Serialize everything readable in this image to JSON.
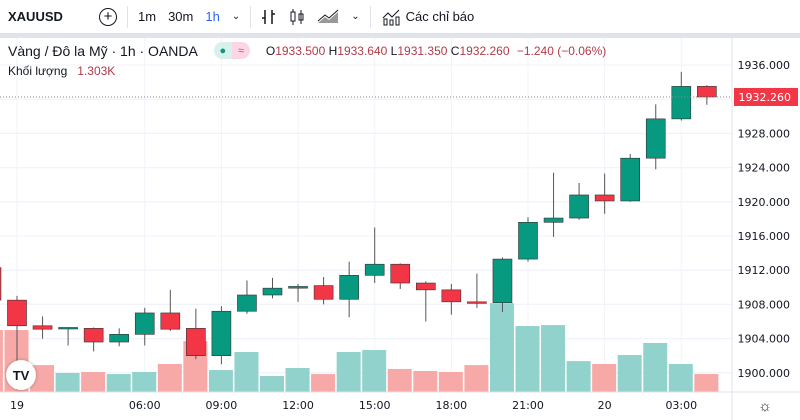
{
  "toolbar": {
    "symbol": "XAUUSD",
    "add_icon": "plus-circle-icon",
    "intervals": [
      "1m",
      "30m",
      "1h"
    ],
    "active_interval": "1h",
    "indicators_label": "Các chỉ báo"
  },
  "legend": {
    "title": "Vàng / Đô la Mỹ · 1h · OANDA",
    "o_label": "O",
    "o": "1933.500",
    "h_label": "H",
    "h": "1933.640",
    "l_label": "L",
    "l": "1931.350",
    "c_label": "C",
    "c": "1932.260",
    "change": "−1.240 (−0.06%)",
    "volume_label": "Khối lượng",
    "volume": "1.303K"
  },
  "colors": {
    "up": "#089981",
    "down": "#f23645",
    "up_vol": "#92d2cc",
    "down_vol": "#f7a9a7"
  },
  "chart_data": {
    "type": "candlestick",
    "price_ticks": [
      "1936.000",
      "1928.000",
      "1924.000",
      "1920.000",
      "1916.000",
      "1912.000",
      "1908.000",
      "1904.000",
      "1900.000"
    ],
    "ylim": [
      1896,
      1940
    ],
    "last_price": "1932.260",
    "time_labels": [
      {
        "i": 1,
        "t": "19"
      },
      {
        "i": 6,
        "t": "06:00"
      },
      {
        "i": 9,
        "t": "09:00"
      },
      {
        "i": 12,
        "t": "12:00"
      },
      {
        "i": 15,
        "t": "15:00"
      },
      {
        "i": 18,
        "t": "18:00"
      },
      {
        "i": 21,
        "t": "21:00"
      },
      {
        "i": 24,
        "t": "20"
      },
      {
        "i": 27,
        "t": "03:00"
      }
    ],
    "candles": [
      [
        1912.3,
        1913,
        1908,
        1908.5,
        4.49
      ],
      [
        1908.5,
        1909,
        1898,
        1905.5,
        4.49
      ],
      [
        1905.5,
        1906.6,
        1904,
        1905.1,
        1.95
      ],
      [
        1905.2,
        1905.3,
        1903.2,
        1905.3,
        1.38
      ],
      [
        1905.2,
        1905.3,
        1902.5,
        1903.6,
        1.45
      ],
      [
        1903.6,
        1905.2,
        1903.1,
        1904.5,
        1.3
      ],
      [
        1904.5,
        1907.6,
        1903.2,
        1907,
        1.45
      ],
      [
        1907,
        1909.7,
        1904.9,
        1905.1,
        2.03
      ],
      [
        1905.2,
        1907.5,
        1901.6,
        1902,
        3.69
      ],
      [
        1902,
        1907.8,
        1901,
        1907.2,
        1.59
      ],
      [
        1907.2,
        1910.8,
        1906.9,
        1909.1,
        2.9
      ],
      [
        1909.1,
        1911.1,
        1908.7,
        1909.9,
        1.16
      ],
      [
        1909.9,
        1910.4,
        1908.3,
        1910.1,
        1.74
      ],
      [
        1910.2,
        1911.2,
        1908,
        1908.6,
        1.3
      ],
      [
        1908.6,
        1913,
        1906.5,
        1911.4,
        2.9
      ],
      [
        1911.4,
        1917,
        1910.5,
        1912.7,
        3.04
      ],
      [
        1912.7,
        1912.8,
        1909.8,
        1910.5,
        1.67
      ],
      [
        1910.5,
        1910.7,
        1906,
        1909.7,
        1.52
      ],
      [
        1909.7,
        1910.4,
        1906.8,
        1908.3,
        1.45
      ],
      [
        1908.3,
        1911.6,
        1907.6,
        1908.2,
        1.95
      ],
      [
        1908.2,
        1913.5,
        1907.1,
        1913.3,
        6.44
      ],
      [
        1913.3,
        1918.2,
        1913,
        1917.6,
        4.78
      ],
      [
        1917.6,
        1923.4,
        1915.9,
        1918.1,
        4.85
      ],
      [
        1918.1,
        1922.2,
        1917.9,
        1920.8,
        2.24
      ],
      [
        1920.8,
        1923.3,
        1918.6,
        1920.1,
        2.03
      ],
      [
        1920.1,
        1925.6,
        1920,
        1925.1,
        2.68
      ],
      [
        1925.1,
        1931.4,
        1923.8,
        1929.7,
        3.55
      ],
      [
        1929.7,
        1935.2,
        1929.5,
        1933.5,
        2.03
      ],
      [
        1933.5,
        1933.64,
        1931.35,
        1932.26,
        1.303
      ]
    ]
  }
}
